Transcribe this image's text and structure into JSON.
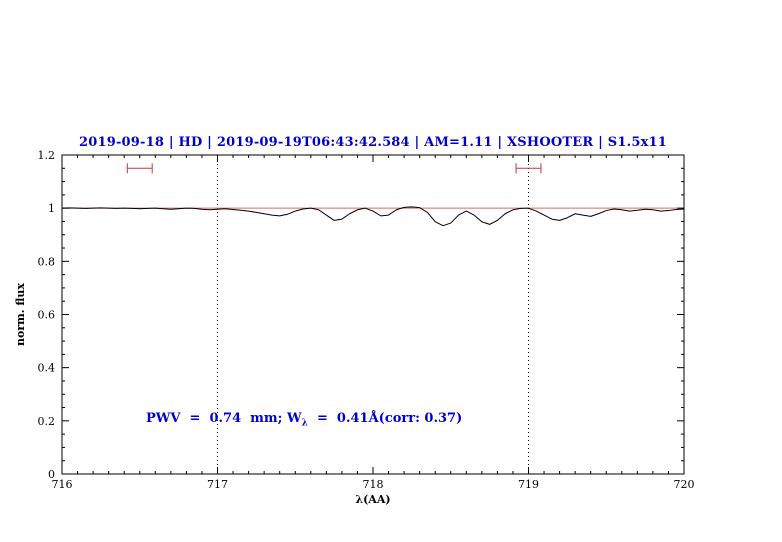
{
  "chart_data": {
    "type": "line",
    "title": "2019-09-18 | HD | 2019-09-19T06:43:42.584 | AM=1.11 | XSHOOTER | S1.5x11",
    "title_color": "#0000cd",
    "xlabel": "λ(AA)",
    "ylabel": "norm. flux",
    "xlim": [
      716,
      720
    ],
    "ylim": [
      0,
      1.2
    ],
    "xticks": [
      716,
      717,
      718,
      719,
      720
    ],
    "xtick_labels": [
      "716",
      "717",
      "718",
      "719",
      "720"
    ],
    "yticks": [
      0,
      0.2,
      0.4,
      0.6,
      0.8,
      1,
      1.2
    ],
    "ytick_labels": [
      "0",
      "0.2",
      "0.4",
      "0.6",
      "0.8",
      "1",
      "1.2"
    ],
    "grid": "off",
    "dotted_vlines": [
      717,
      719
    ],
    "continuum": {
      "y": 1.0,
      "color": "#e06666"
    },
    "range_markers": [
      {
        "x1": 716.42,
        "x2": 716.58,
        "y": 1.15
      },
      {
        "x1": 718.92,
        "x2": 719.08,
        "y": 1.15
      }
    ],
    "marker_color": "#cc3333",
    "annotation": {
      "x": 716.55,
      "y": 0.2,
      "color": "#0000cd",
      "parts": [
        "PWV  =  0.74  mm; W",
        "λ",
        "  =  0.41Å(corr: 0.37)"
      ]
    },
    "series": [
      {
        "name": "spectrum",
        "color": "#000000",
        "points": [
          [
            716.0,
            1.0
          ],
          [
            716.05,
            1.001
          ],
          [
            716.1,
            1.0
          ],
          [
            716.15,
            0.999
          ],
          [
            716.2,
            1.0
          ],
          [
            716.25,
            1.001
          ],
          [
            716.3,
            1.0
          ],
          [
            716.35,
            0.999
          ],
          [
            716.4,
            1.0
          ],
          [
            716.45,
            0.999
          ],
          [
            716.5,
            0.998
          ],
          [
            716.55,
            0.999
          ],
          [
            716.6,
            1.0
          ],
          [
            716.65,
            0.998
          ],
          [
            716.7,
            0.996
          ],
          [
            716.75,
            0.998
          ],
          [
            716.8,
            1.0
          ],
          [
            716.85,
            0.999
          ],
          [
            716.9,
            0.996
          ],
          [
            716.95,
            0.994
          ],
          [
            717.0,
            0.996
          ],
          [
            717.05,
            0.998
          ],
          [
            717.1,
            0.995
          ],
          [
            717.15,
            0.992
          ],
          [
            717.2,
            0.989
          ],
          [
            717.25,
            0.984
          ],
          [
            717.3,
            0.979
          ],
          [
            717.35,
            0.974
          ],
          [
            717.4,
            0.971
          ],
          [
            717.45,
            0.977
          ],
          [
            717.5,
            0.989
          ],
          [
            717.55,
            0.997
          ],
          [
            717.6,
            1.0
          ],
          [
            717.65,
            0.994
          ],
          [
            717.7,
            0.974
          ],
          [
            717.75,
            0.954
          ],
          [
            717.8,
            0.959
          ],
          [
            717.85,
            0.979
          ],
          [
            717.9,
            0.994
          ],
          [
            717.95,
            1.0
          ],
          [
            718.0,
            0.989
          ],
          [
            718.05,
            0.971
          ],
          [
            718.1,
            0.974
          ],
          [
            718.15,
            0.994
          ],
          [
            718.2,
            1.003
          ],
          [
            718.25,
            1.005
          ],
          [
            718.3,
            1.002
          ],
          [
            718.35,
            0.984
          ],
          [
            718.4,
            0.949
          ],
          [
            718.45,
            0.934
          ],
          [
            718.5,
            0.944
          ],
          [
            718.55,
            0.974
          ],
          [
            718.6,
            0.989
          ],
          [
            718.65,
            0.974
          ],
          [
            718.7,
            0.949
          ],
          [
            718.75,
            0.939
          ],
          [
            718.8,
            0.954
          ],
          [
            718.85,
            0.979
          ],
          [
            718.9,
            0.994
          ],
          [
            718.95,
            0.999
          ],
          [
            719.0,
            1.0
          ],
          [
            719.05,
            0.989
          ],
          [
            719.1,
            0.974
          ],
          [
            719.15,
            0.959
          ],
          [
            719.2,
            0.954
          ],
          [
            719.25,
            0.964
          ],
          [
            719.3,
            0.979
          ],
          [
            719.35,
            0.974
          ],
          [
            719.4,
            0.969
          ],
          [
            719.45,
            0.979
          ],
          [
            719.5,
            0.991
          ],
          [
            719.55,
            0.997
          ],
          [
            719.6,
            0.994
          ],
          [
            719.65,
            0.989
          ],
          [
            719.7,
            0.992
          ],
          [
            719.75,
            0.996
          ],
          [
            719.8,
            0.994
          ],
          [
            719.85,
            0.989
          ],
          [
            719.9,
            0.991
          ],
          [
            719.95,
            0.995
          ],
          [
            720.0,
            0.997
          ]
        ]
      }
    ]
  }
}
